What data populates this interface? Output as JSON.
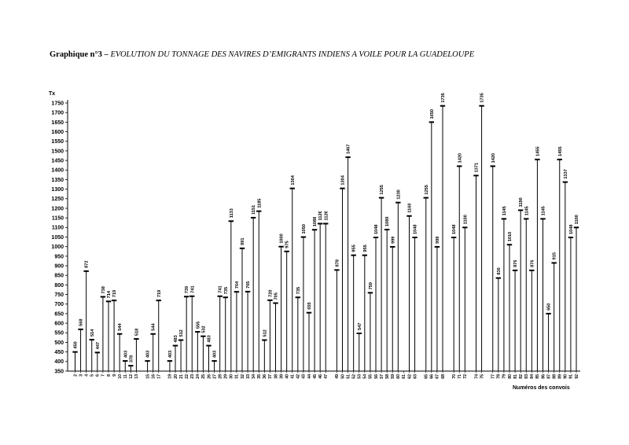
{
  "title": {
    "prefix": "Graphique n°3 –",
    "text": "EVOLUTION DU TONNAGE DES NAVIRES D’EMIGRANTS INDIENS A VOILE POUR LA GUADELOUPE"
  },
  "chart_data": {
    "type": "bar",
    "ylabel": "Tx",
    "xlabel": "Numéros des convois",
    "ylim": [
      350,
      1750
    ],
    "yticks": [
      350,
      400,
      450,
      500,
      550,
      600,
      650,
      700,
      750,
      800,
      850,
      900,
      950,
      1000,
      1050,
      1100,
      1150,
      1200,
      1250,
      1300,
      1350,
      1400,
      1450,
      1500,
      1550,
      1600,
      1650,
      1700,
      1750
    ],
    "grid": false,
    "categories": [
      "2",
      "3",
      "4",
      "5",
      "6",
      "7",
      "8",
      "9",
      "10",
      "11",
      "12",
      "13",
      "15",
      "16",
      "17",
      "19",
      "20",
      "21",
      "22",
      "23",
      "24",
      "25",
      "26",
      "27",
      "28",
      "29",
      "30",
      "31",
      "32",
      "33",
      "34",
      "35",
      "36",
      "37",
      "38",
      "39",
      "40",
      "41",
      "42",
      "43",
      "44",
      "45",
      "46",
      "47",
      "49",
      "50",
      "51",
      "52",
      "53",
      "54",
      "55",
      "56",
      "57",
      "58",
      "59",
      "60",
      "61",
      "62",
      "63",
      "65",
      "66",
      "67",
      "68",
      "70",
      "71",
      "72",
      "74",
      "75",
      "77",
      "78",
      "79",
      "80",
      "81",
      "82",
      "83",
      "84",
      "85",
      "86",
      "87",
      "88",
      "89",
      "90",
      "91",
      "92"
    ],
    "values": [
      {
        "c": "2",
        "v": 450,
        "label": "450"
      },
      {
        "c": "3",
        "v": 568,
        "label": "568"
      },
      {
        "c": "4",
        "v": 872,
        "label": "872"
      },
      {
        "c": "5",
        "v": 514,
        "label": "514"
      },
      {
        "c": "6",
        "v": 447,
        "label": "447"
      },
      {
        "c": "7",
        "v": 738,
        "label": "738"
      },
      {
        "c": "8",
        "v": 714,
        "label": "714"
      },
      {
        "c": "9",
        "v": 719,
        "label": "719"
      },
      {
        "c": "10",
        "v": 544,
        "label": "544"
      },
      {
        "c": "11",
        "v": 403,
        "label": "403"
      },
      {
        "c": "12",
        "v": 378,
        "label": "378"
      },
      {
        "c": "13",
        "v": 518,
        "label": "518"
      },
      {
        "c": "15",
        "v": 403,
        "label": "403"
      },
      {
        "c": "16",
        "v": 544,
        "label": "544"
      },
      {
        "c": "17",
        "v": 719,
        "label": "719"
      },
      {
        "c": "19",
        "v": 403,
        "label": "403"
      },
      {
        "c": "20",
        "v": 483,
        "label": "483"
      },
      {
        "c": "21",
        "v": 512,
        "label": "512"
      },
      {
        "c": "22",
        "v": 739,
        "label": "739"
      },
      {
        "c": "23",
        "v": 741,
        "label": "741"
      },
      {
        "c": "24",
        "v": 555,
        "label": "555"
      },
      {
        "c": "25",
        "v": 532,
        "label": "532"
      },
      {
        "c": "26",
        "v": 483,
        "label": "483"
      },
      {
        "c": "27",
        "v": 403,
        "label": "403"
      },
      {
        "c": "28",
        "v": 741,
        "label": "741"
      },
      {
        "c": "29",
        "v": 735,
        "label": "735"
      },
      {
        "c": "30",
        "v": 1133,
        "label": "1133"
      },
      {
        "c": "31",
        "v": 764,
        "label": "764"
      },
      {
        "c": "32",
        "v": 991,
        "label": "991"
      },
      {
        "c": "33",
        "v": 765,
        "label": "765"
      },
      {
        "c": "34",
        "v": 1151,
        "label": "1151"
      },
      {
        "c": "35",
        "v": 1185,
        "label": "1185"
      },
      {
        "c": "36",
        "v": 512,
        "label": "512"
      },
      {
        "c": "37",
        "v": 720,
        "label": "720"
      },
      {
        "c": "38",
        "v": 705,
        "label": "705"
      },
      {
        "c": "39",
        "v": 1000,
        "label": "1000"
      },
      {
        "c": "40",
        "v": 975,
        "label": "975"
      },
      {
        "c": "41",
        "v": 1304,
        "label": "1304"
      },
      {
        "c": "42",
        "v": 735,
        "label": "735"
      },
      {
        "c": "43",
        "v": 1050,
        "label": "1050"
      },
      {
        "c": "44",
        "v": 655,
        "label": "655"
      },
      {
        "c": "45",
        "v": 1088,
        "label": "1088"
      },
      {
        "c": "46",
        "v": 1120,
        "label": "112€"
      },
      {
        "c": "47",
        "v": 1120,
        "label": "112€"
      },
      {
        "c": "49",
        "v": 878,
        "label": "878"
      },
      {
        "c": "50",
        "v": 1304,
        "label": "1304"
      },
      {
        "c": "51",
        "v": 1467,
        "label": "1467"
      },
      {
        "c": "52",
        "v": 955,
        "label": "955"
      },
      {
        "c": "53",
        "v": 547,
        "label": "547"
      },
      {
        "c": "54",
        "v": 955,
        "label": "955"
      },
      {
        "c": "55",
        "v": 759,
        "label": "759"
      },
      {
        "c": "56",
        "v": 1048,
        "label": "1048"
      },
      {
        "c": "57",
        "v": 1255,
        "label": "1255"
      },
      {
        "c": "58",
        "v": 1089,
        "label": "1089"
      },
      {
        "c": "59",
        "v": 999,
        "label": "999"
      },
      {
        "c": "60",
        "v": 1230,
        "label": "1230"
      },
      {
        "c": "61",
        "v": null,
        "label": ""
      },
      {
        "c": "62",
        "v": 1160,
        "label": "1160"
      },
      {
        "c": "63",
        "v": 1048,
        "label": "1048"
      },
      {
        "c": "65",
        "v": 1255,
        "label": "1255"
      },
      {
        "c": "66",
        "v": 1650,
        "label": "1650"
      },
      {
        "c": "67",
        "v": 999,
        "label": "999"
      },
      {
        "c": "68",
        "v": 1735,
        "label": "1735"
      },
      {
        "c": "70",
        "v": 1048,
        "label": "1048"
      },
      {
        "c": "71",
        "v": 1420,
        "label": "1420"
      },
      {
        "c": "72",
        "v": 1100,
        "label": "1100"
      },
      {
        "c": "74",
        "v": 1371,
        "label": "1371"
      },
      {
        "c": "75",
        "v": 1735,
        "label": "1735"
      },
      {
        "c": "77",
        "v": 1420,
        "label": "1420"
      },
      {
        "c": "78",
        "v": 836,
        "label": "836"
      },
      {
        "c": "79",
        "v": 1145,
        "label": "1145"
      },
      {
        "c": "80",
        "v": 1010,
        "label": "1010"
      },
      {
        "c": "81",
        "v": 876,
        "label": "876"
      },
      {
        "c": "82",
        "v": 1190,
        "label": "1190"
      },
      {
        "c": "83",
        "v": 1145,
        "label": "1145"
      },
      {
        "c": "84",
        "v": 876,
        "label": "876"
      },
      {
        "c": "85",
        "v": 1455,
        "label": "1455"
      },
      {
        "c": "86",
        "v": 1145,
        "label": "1145"
      },
      {
        "c": "87",
        "v": 650,
        "label": "650"
      },
      {
        "c": "88",
        "v": 915,
        "label": "915"
      },
      {
        "c": "89",
        "v": 1455,
        "label": "1455"
      },
      {
        "c": "90",
        "v": 1337,
        "label": "1337"
      },
      {
        "c": "91",
        "v": 1048,
        "label": "1048"
      },
      {
        "c": "92",
        "v": 1100,
        "label": "1100"
      }
    ]
  }
}
